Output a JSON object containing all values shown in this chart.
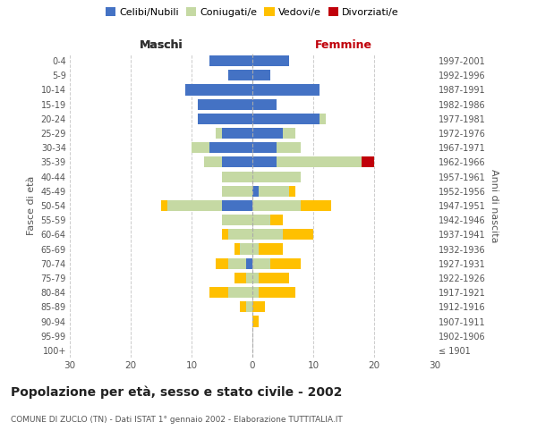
{
  "age_groups": [
    "100+",
    "95-99",
    "90-94",
    "85-89",
    "80-84",
    "75-79",
    "70-74",
    "65-69",
    "60-64",
    "55-59",
    "50-54",
    "45-49",
    "40-44",
    "35-39",
    "30-34",
    "25-29",
    "20-24",
    "15-19",
    "10-14",
    "5-9",
    "0-4"
  ],
  "birth_years": [
    "≤ 1901",
    "1902-1906",
    "1907-1911",
    "1912-1916",
    "1917-1921",
    "1922-1926",
    "1927-1931",
    "1932-1936",
    "1937-1941",
    "1942-1946",
    "1947-1951",
    "1952-1956",
    "1957-1961",
    "1962-1966",
    "1967-1971",
    "1972-1976",
    "1977-1981",
    "1982-1986",
    "1987-1991",
    "1992-1996",
    "1997-2001"
  ],
  "males_celibi": [
    0,
    0,
    0,
    0,
    0,
    0,
    1,
    0,
    0,
    0,
    5,
    0,
    0,
    5,
    7,
    5,
    9,
    9,
    11,
    4,
    7
  ],
  "males_coniugati": [
    0,
    0,
    0,
    1,
    4,
    1,
    3,
    2,
    4,
    5,
    9,
    5,
    5,
    3,
    3,
    1,
    0,
    0,
    0,
    0,
    0
  ],
  "males_vedovi": [
    0,
    0,
    0,
    1,
    3,
    2,
    2,
    1,
    1,
    0,
    1,
    0,
    0,
    0,
    0,
    0,
    0,
    0,
    0,
    0,
    0
  ],
  "males_divorziati": [
    0,
    0,
    0,
    0,
    0,
    0,
    0,
    0,
    0,
    0,
    0,
    0,
    0,
    0,
    0,
    0,
    0,
    0,
    0,
    0,
    0
  ],
  "females_nubili": [
    0,
    0,
    0,
    0,
    0,
    0,
    0,
    0,
    0,
    0,
    0,
    1,
    0,
    4,
    4,
    5,
    11,
    4,
    11,
    3,
    6
  ],
  "females_coniugate": [
    0,
    0,
    0,
    0,
    1,
    1,
    3,
    1,
    5,
    3,
    8,
    5,
    8,
    14,
    4,
    2,
    1,
    0,
    0,
    0,
    0
  ],
  "females_vedove": [
    0,
    0,
    1,
    2,
    6,
    5,
    5,
    4,
    5,
    2,
    5,
    1,
    0,
    0,
    0,
    0,
    0,
    0,
    0,
    0,
    0
  ],
  "females_divorziate": [
    0,
    0,
    0,
    0,
    0,
    0,
    0,
    0,
    0,
    0,
    0,
    0,
    0,
    2,
    0,
    0,
    0,
    0,
    0,
    0,
    0
  ],
  "color_celibi": "#4472c4",
  "color_coniugati": "#c5d9a3",
  "color_vedovi": "#ffc000",
  "color_divorziati": "#c0000a",
  "xlim": 30,
  "title": "Popolazione per età, sesso e stato civile - 2002",
  "subtitle": "COMUNE DI ZUCLO (TN) - Dati ISTAT 1° gennaio 2002 - Elaborazione TUTTITALIA.IT",
  "ylabel_left": "Fasce di età",
  "ylabel_right": "Anni di nascita",
  "label_maschi": "Maschi",
  "label_femmine": "Femmine",
  "legend_labels": [
    "Celibi/Nubili",
    "Coniugati/e",
    "Vedovi/e",
    "Divorziati/e"
  ],
  "bg_color": "#ffffff",
  "grid_color": "#cccccc"
}
